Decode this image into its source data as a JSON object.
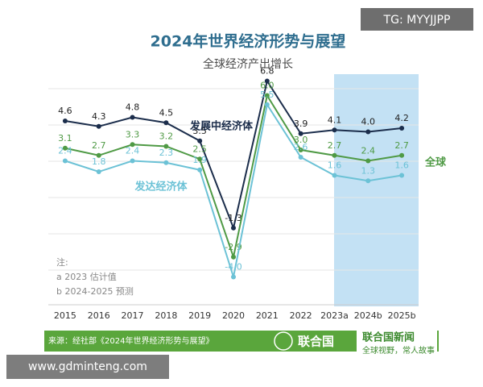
{
  "chart_data": {
    "type": "line",
    "title": "2024年世界经济形势与展望",
    "subtitle": "全球经济产出增长",
    "categories": [
      "2015",
      "2016",
      "2017",
      "2018",
      "2019",
      "2020",
      "2021",
      "2022",
      "2023a",
      "2024b",
      "2025b"
    ],
    "series": [
      {
        "name": "发展中经济体",
        "color": "#1b2d4b",
        "values": [
          4.6,
          4.3,
          4.8,
          4.5,
          3.5,
          -1.3,
          6.8,
          3.9,
          4.1,
          4.0,
          4.2
        ],
        "value_labels": [
          "4.6",
          "4.3",
          "4.8",
          "4.5",
          "3.5",
          "-1.3",
          "6.8",
          "3.9",
          "4.1",
          "4.0",
          "4.2"
        ]
      },
      {
        "name": "全球",
        "color": "#4f9a45",
        "values": [
          3.1,
          2.7,
          3.3,
          3.2,
          2.5,
          -2.9,
          6.0,
          3.0,
          2.7,
          2.4,
          2.7
        ],
        "value_labels": [
          "3.1",
          "2.7",
          "3.3",
          "3.2",
          "2.5",
          "-2.9",
          "6.0",
          "3.0",
          "2.7",
          "2.4",
          "2.7"
        ]
      },
      {
        "name": "发达经济体",
        "color": "#6cc2d6",
        "values": [
          2.4,
          1.8,
          2.4,
          2.3,
          1.9,
          -4.0,
          5.5,
          2.6,
          1.6,
          1.3,
          1.6
        ],
        "value_labels": [
          "2.4",
          "1.8",
          "2.4",
          "2.3",
          "1.9",
          "-4.0",
          "5.5",
          "2.6",
          "1.6",
          "1.3",
          "1.6"
        ]
      }
    ],
    "ylim": [
      -5,
      8
    ],
    "notes": [
      "注:",
      "a 2023 估计值",
      "b 2024-2025 预测"
    ],
    "source": "来源：经社部《2024年世界经济形势与展望》",
    "logo_text": "联合国",
    "brand": "联合国新闻",
    "brand_slogan": "全球视野，常人故事"
  },
  "watermarks": [
    "TG: MYYJJPP",
    "www.gdminteng.com"
  ]
}
